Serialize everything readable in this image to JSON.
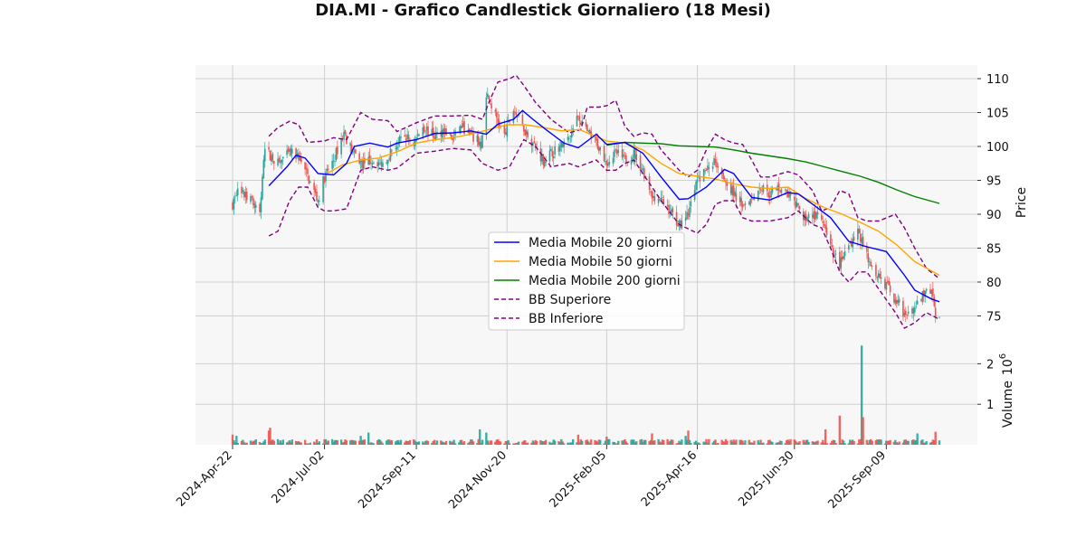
{
  "chart_data": {
    "type": "candlestick",
    "title": "DIA.MI - Grafico Candlestick Giornaliero (18 Mesi)",
    "colors": {
      "up": "#26a69a",
      "down": "#ef5350",
      "ma20": "#0000ff",
      "ma50": "#ffa500",
      "ma200": "#008000",
      "bollinger": "#800080",
      "panel_bg": "#f7f7f7",
      "grid": "#d0d0d0"
    },
    "price_panel": {
      "ylabel": "Price",
      "ylim": [
        72,
        112
      ],
      "yticks": [
        75,
        80,
        85,
        90,
        95,
        100,
        105,
        110
      ],
      "grid": true
    },
    "volume_panel": {
      "ylabel": "Volume",
      "exponent_label": "10",
      "exponent": "6",
      "ylim": [
        0,
        2.5
      ],
      "yticks": [
        1,
        2
      ],
      "grid": true
    },
    "x_axis": {
      "range": [
        "2024-04-22",
        "2025-10-20"
      ],
      "ticks": [
        "2024-Apr-22",
        "2024-Jul-02",
        "2024-Sep-11",
        "2024-Nov-20",
        "2025-Feb-05",
        "2025-Apr-16",
        "2025-Jun-30",
        "2025-Sep-09"
      ],
      "tick_dates": [
        "2024-04-22",
        "2024-07-02",
        "2024-09-11",
        "2024-11-20",
        "2025-02-05",
        "2025-04-16",
        "2025-06-30",
        "2025-09-09"
      ]
    },
    "legend": {
      "placement": "center",
      "entries": [
        {
          "key": "ma20",
          "label": "Media Mobile 20 giorni",
          "style": "solid"
        },
        {
          "key": "ma50",
          "label": "Media Mobile 50 giorni",
          "style": "solid"
        },
        {
          "key": "ma200",
          "label": "Media Mobile 200 giorni",
          "style": "solid"
        },
        {
          "key": "bb_upper",
          "label": "BB Superiore",
          "style": "dashed"
        },
        {
          "key": "bb_lower",
          "label": "BB Inferiore",
          "style": "dashed"
        }
      ]
    },
    "price_anchors": [
      [
        "2024-04-22",
        91.5
      ],
      [
        "2024-04-26",
        93.5
      ],
      [
        "2024-05-06",
        92.0
      ],
      [
        "2024-05-13",
        90.5
      ],
      [
        "2024-05-17",
        99.5
      ],
      [
        "2024-05-27",
        97.5
      ],
      [
        "2024-06-05",
        99.0
      ],
      [
        "2024-06-12",
        98.5
      ],
      [
        "2024-06-19",
        95.5
      ],
      [
        "2024-06-27",
        92.0
      ],
      [
        "2024-07-02",
        95.5
      ],
      [
        "2024-07-09",
        98.0
      ],
      [
        "2024-07-17",
        102.0
      ],
      [
        "2024-07-24",
        99.0
      ],
      [
        "2024-07-31",
        97.5
      ],
      [
        "2024-08-07",
        98.0
      ],
      [
        "2024-08-16",
        97.5
      ],
      [
        "2024-08-23",
        99.5
      ],
      [
        "2024-09-02",
        101.5
      ],
      [
        "2024-09-09",
        100.5
      ],
      [
        "2024-09-16",
        103.0
      ],
      [
        "2024-09-25",
        101.5
      ],
      [
        "2024-10-02",
        102.5
      ],
      [
        "2024-10-09",
        101.0
      ],
      [
        "2024-10-16",
        103.0
      ],
      [
        "2024-10-23",
        101.5
      ],
      [
        "2024-10-31",
        100.5
      ],
      [
        "2024-11-04",
        108.0
      ],
      [
        "2024-11-11",
        104.5
      ],
      [
        "2024-11-18",
        101.5
      ],
      [
        "2024-11-25",
        105.5
      ],
      [
        "2024-12-02",
        103.0
      ],
      [
        "2024-12-10",
        100.5
      ],
      [
        "2024-12-18",
        98.0
      ],
      [
        "2024-12-27",
        99.5
      ],
      [
        "2025-01-07",
        101.0
      ],
      [
        "2025-01-14",
        104.5
      ],
      [
        "2025-01-21",
        102.0
      ],
      [
        "2025-01-28",
        100.5
      ],
      [
        "2025-02-05",
        98.0
      ],
      [
        "2025-02-12",
        99.0
      ],
      [
        "2025-02-19",
        98.0
      ],
      [
        "2025-02-26",
        99.0
      ],
      [
        "2025-03-05",
        96.5
      ],
      [
        "2025-03-12",
        93.0
      ],
      [
        "2025-03-19",
        92.0
      ],
      [
        "2025-03-26",
        90.5
      ],
      [
        "2025-04-02",
        88.5
      ],
      [
        "2025-04-09",
        90.0
      ],
      [
        "2025-04-16",
        95.0
      ],
      [
        "2025-04-23",
        96.5
      ],
      [
        "2025-04-30",
        98.0
      ],
      [
        "2025-05-07",
        95.5
      ],
      [
        "2025-05-14",
        93.0
      ],
      [
        "2025-05-21",
        91.5
      ],
      [
        "2025-05-28",
        92.5
      ],
      [
        "2025-06-04",
        94.0
      ],
      [
        "2025-06-11",
        93.0
      ],
      [
        "2025-06-18",
        94.0
      ],
      [
        "2025-06-25",
        93.0
      ],
      [
        "2025-06-30",
        91.5
      ],
      [
        "2025-07-07",
        89.5
      ],
      [
        "2025-07-14",
        90.0
      ],
      [
        "2025-07-21",
        89.0
      ],
      [
        "2025-07-28",
        85.0
      ],
      [
        "2025-08-04",
        82.5
      ],
      [
        "2025-08-11",
        85.5
      ],
      [
        "2025-08-18",
        87.5
      ],
      [
        "2025-08-25",
        84.0
      ],
      [
        "2025-09-01",
        81.5
      ],
      [
        "2025-09-09",
        79.5
      ],
      [
        "2025-09-16",
        77.5
      ],
      [
        "2025-09-23",
        75.0
      ],
      [
        "2025-09-30",
        76.0
      ],
      [
        "2025-10-07",
        78.0
      ],
      [
        "2025-10-14",
        79.0
      ],
      [
        "2025-10-17",
        75.5
      ],
      [
        "2025-10-20",
        74.5
      ]
    ],
    "ma20": [
      [
        "2024-05-20",
        94.2
      ],
      [
        "2024-06-03",
        97.0
      ],
      [
        "2024-06-10",
        98.7
      ],
      [
        "2024-06-17",
        98.3
      ],
      [
        "2024-06-27",
        96.0
      ],
      [
        "2024-07-09",
        95.8
      ],
      [
        "2024-07-19",
        97.5
      ],
      [
        "2024-07-25",
        100.0
      ],
      [
        "2024-08-06",
        100.5
      ],
      [
        "2024-08-20",
        99.9
      ],
      [
        "2024-08-27",
        100.5
      ],
      [
        "2024-09-11",
        101.0
      ],
      [
        "2024-09-25",
        101.9
      ],
      [
        "2024-10-09",
        102.0
      ],
      [
        "2024-10-23",
        102.3
      ],
      [
        "2024-11-04",
        101.8
      ],
      [
        "2024-11-13",
        103.3
      ],
      [
        "2024-11-25",
        104.0
      ],
      [
        "2024-12-02",
        105.3
      ],
      [
        "2024-12-10",
        104.0
      ],
      [
        "2024-12-20",
        102.5
      ],
      [
        "2025-01-03",
        100.5
      ],
      [
        "2025-01-14",
        99.8
      ],
      [
        "2025-01-28",
        101.8
      ],
      [
        "2025-02-05",
        100.3
      ],
      [
        "2025-02-19",
        100.6
      ],
      [
        "2025-03-05",
        99.0
      ],
      [
        "2025-03-19",
        95.5
      ],
      [
        "2025-04-02",
        92.2
      ],
      [
        "2025-04-09",
        92.3
      ],
      [
        "2025-04-23",
        94.0
      ],
      [
        "2025-05-07",
        96.6
      ],
      [
        "2025-05-14",
        96.0
      ],
      [
        "2025-05-28",
        92.5
      ],
      [
        "2025-06-11",
        92.1
      ],
      [
        "2025-06-25",
        93.2
      ],
      [
        "2025-07-03",
        93.0
      ],
      [
        "2025-07-14",
        91.5
      ],
      [
        "2025-07-28",
        89.5
      ],
      [
        "2025-08-11",
        86.0
      ],
      [
        "2025-08-25",
        85.2
      ],
      [
        "2025-09-09",
        84.5
      ],
      [
        "2025-09-23",
        81.0
      ],
      [
        "2025-10-01",
        78.8
      ],
      [
        "2025-10-14",
        77.5
      ],
      [
        "2025-10-20",
        77.1
      ]
    ],
    "ma50": [
      [
        "2024-07-02",
        95.8
      ],
      [
        "2024-07-16",
        97.3
      ],
      [
        "2024-07-30",
        98.0
      ],
      [
        "2024-08-13",
        98.3
      ],
      [
        "2024-08-27",
        99.2
      ],
      [
        "2024-09-11",
        100.5
      ],
      [
        "2024-09-25",
        101.0
      ],
      [
        "2024-10-09",
        101.3
      ],
      [
        "2024-10-23",
        101.8
      ],
      [
        "2024-11-06",
        102.5
      ],
      [
        "2024-11-20",
        103.2
      ],
      [
        "2024-12-04",
        103.2
      ],
      [
        "2024-12-18",
        102.8
      ],
      [
        "2025-01-01",
        102.3
      ],
      [
        "2025-01-15",
        102.5
      ],
      [
        "2025-02-05",
        100.8
      ],
      [
        "2025-02-19",
        100.5
      ],
      [
        "2025-03-05",
        99.5
      ],
      [
        "2025-03-19",
        97.5
      ],
      [
        "2025-04-02",
        96.0
      ],
      [
        "2025-04-16",
        95.6
      ],
      [
        "2025-04-30",
        95.2
      ],
      [
        "2025-05-14",
        94.5
      ],
      [
        "2025-05-28",
        94.0
      ],
      [
        "2025-06-11",
        93.8
      ],
      [
        "2025-06-25",
        94.0
      ],
      [
        "2025-07-09",
        92.3
      ],
      [
        "2025-07-23",
        91.0
      ],
      [
        "2025-08-06",
        90.0
      ],
      [
        "2025-08-20",
        88.8
      ],
      [
        "2025-09-03",
        87.5
      ],
      [
        "2025-09-17",
        85.5
      ],
      [
        "2025-10-01",
        83.0
      ],
      [
        "2025-10-20",
        81.0
      ]
    ],
    "ma200": [
      [
        "2025-02-05",
        100.2
      ],
      [
        "2025-02-19",
        100.6
      ],
      [
        "2025-03-05",
        100.5
      ],
      [
        "2025-03-19",
        100.4
      ],
      [
        "2025-04-02",
        100.1
      ],
      [
        "2025-04-16",
        100.0
      ],
      [
        "2025-04-30",
        99.9
      ],
      [
        "2025-05-14",
        99.5
      ],
      [
        "2025-05-28",
        99.0
      ],
      [
        "2025-06-11",
        98.6
      ],
      [
        "2025-06-25",
        98.2
      ],
      [
        "2025-07-09",
        97.7
      ],
      [
        "2025-07-23",
        97.0
      ],
      [
        "2025-08-06",
        96.3
      ],
      [
        "2025-08-20",
        95.6
      ],
      [
        "2025-09-03",
        94.7
      ],
      [
        "2025-09-17",
        93.6
      ],
      [
        "2025-10-01",
        92.6
      ],
      [
        "2025-10-20",
        91.6
      ]
    ],
    "bb_upper": [
      [
        "2024-05-20",
        101.5
      ],
      [
        "2024-05-27",
        102.8
      ],
      [
        "2024-06-05",
        103.7
      ],
      [
        "2024-06-12",
        103.2
      ],
      [
        "2024-06-19",
        100.6
      ],
      [
        "2024-07-02",
        100.8
      ],
      [
        "2024-07-09",
        101.3
      ],
      [
        "2024-07-19",
        101.0
      ],
      [
        "2024-07-30",
        105.0
      ],
      [
        "2024-08-08",
        104.0
      ],
      [
        "2024-08-20",
        103.8
      ],
      [
        "2024-08-27",
        102.2
      ],
      [
        "2024-09-11",
        103.5
      ],
      [
        "2024-09-25",
        104.5
      ],
      [
        "2024-10-09",
        104.5
      ],
      [
        "2024-10-23",
        104.6
      ],
      [
        "2024-11-01",
        104.0
      ],
      [
        "2024-11-06",
        106.5
      ],
      [
        "2024-11-13",
        109.5
      ],
      [
        "2024-11-22",
        110.0
      ],
      [
        "2024-11-27",
        110.5
      ],
      [
        "2024-12-03",
        109.0
      ],
      [
        "2024-12-12",
        106.5
      ],
      [
        "2024-12-24",
        104.0
      ],
      [
        "2025-01-07",
        102.0
      ],
      [
        "2025-01-16",
        102.5
      ],
      [
        "2025-01-21",
        105.8
      ],
      [
        "2025-01-30",
        105.8
      ],
      [
        "2025-02-05",
        106.0
      ],
      [
        "2025-02-12",
        106.8
      ],
      [
        "2025-02-19",
        103.0
      ],
      [
        "2025-02-26",
        101.5
      ],
      [
        "2025-03-05",
        102.0
      ],
      [
        "2025-03-12",
        101.8
      ],
      [
        "2025-03-19",
        99.5
      ],
      [
        "2025-04-02",
        96.5
      ],
      [
        "2025-04-09",
        95.5
      ],
      [
        "2025-04-16",
        96.5
      ],
      [
        "2025-04-23",
        99.5
      ],
      [
        "2025-04-30",
        101.8
      ],
      [
        "2025-05-07",
        101.0
      ],
      [
        "2025-05-14",
        100.5
      ],
      [
        "2025-05-21",
        100.3
      ],
      [
        "2025-05-28",
        98.0
      ],
      [
        "2025-06-04",
        95.5
      ],
      [
        "2025-06-11",
        95.5
      ],
      [
        "2025-06-25",
        96.3
      ],
      [
        "2025-07-03",
        95.8
      ],
      [
        "2025-07-14",
        93.5
      ],
      [
        "2025-07-21",
        90.5
      ],
      [
        "2025-07-28",
        91.0
      ],
      [
        "2025-08-04",
        93.5
      ],
      [
        "2025-08-11",
        93.0
      ],
      [
        "2025-08-18",
        89.5
      ],
      [
        "2025-08-25",
        89.0
      ],
      [
        "2025-09-03",
        89.0
      ],
      [
        "2025-09-16",
        90.0
      ],
      [
        "2025-09-23",
        88.0
      ],
      [
        "2025-10-01",
        85.0
      ],
      [
        "2025-10-10",
        82.0
      ],
      [
        "2025-10-20",
        80.5
      ]
    ],
    "bb_lower": [
      [
        "2024-05-20",
        86.8
      ],
      [
        "2024-05-27",
        87.5
      ],
      [
        "2024-06-05",
        92.0
      ],
      [
        "2024-06-12",
        94.0
      ],
      [
        "2024-06-19",
        94.0
      ],
      [
        "2024-06-27",
        91.0
      ],
      [
        "2024-07-02",
        90.5
      ],
      [
        "2024-07-09",
        90.5
      ],
      [
        "2024-07-19",
        90.8
      ],
      [
        "2024-07-30",
        96.5
      ],
      [
        "2024-08-08",
        97.0
      ],
      [
        "2024-08-20",
        96.5
      ],
      [
        "2024-08-27",
        96.8
      ],
      [
        "2024-09-11",
        99.0
      ],
      [
        "2024-09-25",
        99.3
      ],
      [
        "2024-10-09",
        99.7
      ],
      [
        "2024-10-23",
        99.5
      ],
      [
        "2024-11-01",
        97.5
      ],
      [
        "2024-11-13",
        96.5
      ],
      [
        "2024-11-22",
        97.0
      ],
      [
        "2024-12-03",
        101.0
      ],
      [
        "2024-12-12",
        100.0
      ],
      [
        "2024-12-24",
        97.0
      ],
      [
        "2025-01-07",
        97.5
      ],
      [
        "2025-01-14",
        97.0
      ],
      [
        "2025-01-21",
        97.5
      ],
      [
        "2025-01-28",
        98.0
      ],
      [
        "2025-02-05",
        96.5
      ],
      [
        "2025-02-12",
        96.5
      ],
      [
        "2025-02-19",
        97.5
      ],
      [
        "2025-02-26",
        98.0
      ],
      [
        "2025-03-05",
        96.0
      ],
      [
        "2025-03-19",
        92.0
      ],
      [
        "2025-04-02",
        88.5
      ],
      [
        "2025-04-16",
        87.2
      ],
      [
        "2025-04-23",
        88.5
      ],
      [
        "2025-04-30",
        91.5
      ],
      [
        "2025-05-07",
        92.0
      ],
      [
        "2025-05-14",
        92.0
      ],
      [
        "2025-05-21",
        89.5
      ],
      [
        "2025-05-28",
        89.0
      ],
      [
        "2025-06-11",
        89.0
      ],
      [
        "2025-06-25",
        89.5
      ],
      [
        "2025-07-03",
        90.5
      ],
      [
        "2025-07-14",
        88.5
      ],
      [
        "2025-07-21",
        88.0
      ],
      [
        "2025-07-28",
        85.0
      ],
      [
        "2025-08-04",
        81.5
      ],
      [
        "2025-08-11",
        80.0
      ],
      [
        "2025-08-18",
        81.5
      ],
      [
        "2025-08-25",
        81.5
      ],
      [
        "2025-09-03",
        79.0
      ],
      [
        "2025-09-16",
        75.5
      ],
      [
        "2025-09-23",
        73.2
      ],
      [
        "2025-10-01",
        74.0
      ],
      [
        "2025-10-10",
        75.5
      ],
      [
        "2025-10-20",
        74.5
      ]
    ],
    "volume_spikes": [
      [
        "2024-04-22",
        0.25
      ],
      [
        "2024-04-25",
        0.22
      ],
      [
        "2024-05-20",
        0.35
      ],
      [
        "2024-05-21",
        0.42
      ],
      [
        "2024-07-30",
        0.22
      ],
      [
        "2024-08-05",
        0.3
      ],
      [
        "2024-10-30",
        0.38
      ],
      [
        "2024-11-04",
        0.3
      ],
      [
        "2025-01-14",
        0.25
      ],
      [
        "2025-02-05",
        0.2
      ],
      [
        "2025-03-12",
        0.28
      ],
      [
        "2025-04-07",
        0.22
      ],
      [
        "2025-04-09",
        0.35
      ],
      [
        "2025-07-24",
        0.38
      ],
      [
        "2025-08-04",
        0.72
      ],
      [
        "2025-08-21",
        2.45
      ],
      [
        "2025-08-22",
        0.68
      ],
      [
        "2025-10-03",
        0.28
      ],
      [
        "2025-10-17",
        0.32
      ]
    ],
    "volume_base": 0.1
  }
}
